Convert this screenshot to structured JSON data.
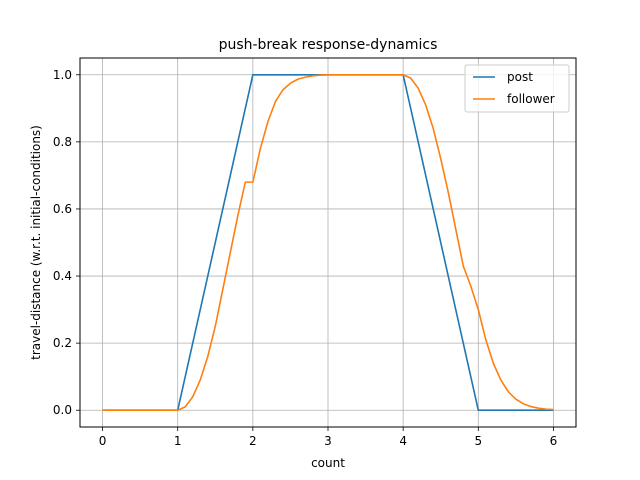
{
  "chart_data": {
    "type": "line",
    "title": "push-break response-dynamics",
    "xlabel": "count",
    "ylabel": "travel-distance (w.r.t. initial-conditions)",
    "xlim": [
      -0.3,
      6.3
    ],
    "ylim": [
      -0.05,
      1.05
    ],
    "xticks": [
      0,
      1,
      2,
      3,
      4,
      5,
      6
    ],
    "xtick_labels": [
      "0",
      "1",
      "2",
      "3",
      "4",
      "5",
      "6"
    ],
    "yticks": [
      0.0,
      0.2,
      0.4,
      0.6,
      0.8,
      1.0
    ],
    "ytick_labels": [
      "0.0",
      "0.2",
      "0.4",
      "0.6",
      "0.8",
      "1.0"
    ],
    "grid": true,
    "legend_position": "top-right",
    "series": [
      {
        "name": "post",
        "color": "#1f77b4",
        "x": [
          0,
          1,
          2,
          4,
          5,
          6
        ],
        "y": [
          0,
          0,
          1,
          1,
          0,
          0
        ]
      },
      {
        "name": "follower",
        "color": "#ff7f0e",
        "x": [
          0,
          1.0,
          1.1,
          1.2,
          1.3,
          1.4,
          1.5,
          1.6,
          1.7,
          1.8,
          1.9,
          2.0,
          2.1,
          2.2,
          2.3,
          2.4,
          2.5,
          2.6,
          2.7,
          2.8,
          2.9,
          3.0,
          3.2,
          3.4,
          3.6,
          3.8,
          4.0,
          4.1,
          4.2,
          4.3,
          4.4,
          4.5,
          4.6,
          4.7,
          4.8,
          4.9,
          5.0,
          5.1,
          5.2,
          5.3,
          5.4,
          5.5,
          5.6,
          5.7,
          5.8,
          5.9,
          6.0
        ],
        "y": [
          0,
          0,
          0.01,
          0.04,
          0.09,
          0.16,
          0.25,
          0.36,
          0.47,
          0.58,
          0.68,
          0.68,
          0.78,
          0.86,
          0.92,
          0.955,
          0.975,
          0.987,
          0.993,
          0.997,
          0.999,
          1.0,
          1.0,
          1.0,
          1.0,
          1.0,
          1.0,
          0.99,
          0.96,
          0.91,
          0.84,
          0.75,
          0.65,
          0.54,
          0.43,
          0.37,
          0.3,
          0.21,
          0.14,
          0.09,
          0.055,
          0.033,
          0.019,
          0.011,
          0.006,
          0.003,
          0.002
        ]
      }
    ]
  }
}
